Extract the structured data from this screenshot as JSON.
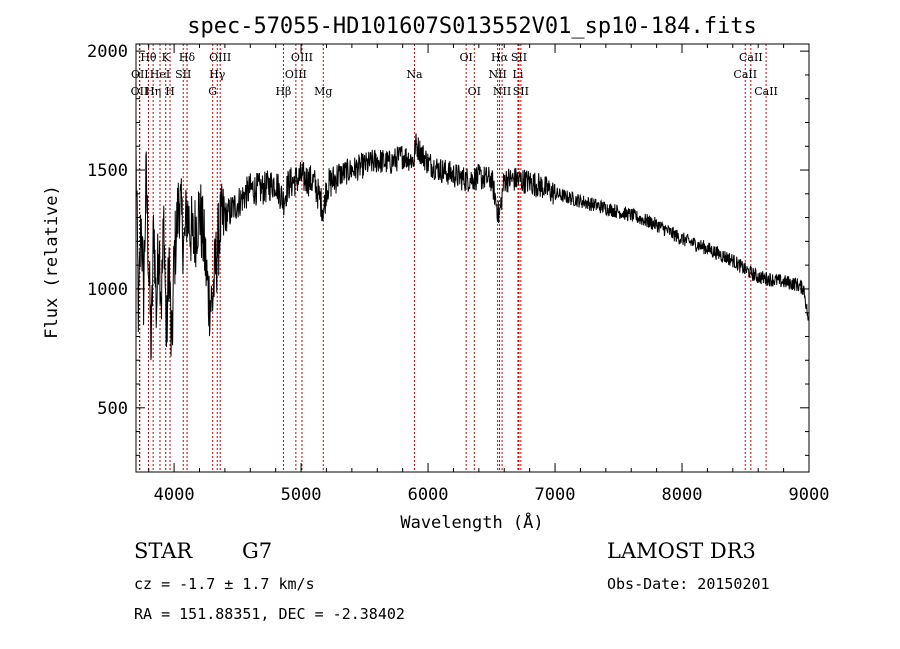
{
  "chart_data": {
    "type": "line",
    "title": "spec-57055-HD101607S013552V01_sp10-184.fits",
    "xlabel": "Wavelength (Å)",
    "ylabel": "Flux (relative)",
    "xlim": [
      3700,
      9000
    ],
    "ylim": [
      230,
      2030
    ],
    "xticks": [
      4000,
      5000,
      6000,
      7000,
      8000,
      9000
    ],
    "yticks": [
      500,
      1000,
      1500,
      2000
    ],
    "series": [
      {
        "name": "spectrum",
        "anchors": [
          [
            3700,
            1560
          ],
          [
            3720,
            860
          ],
          [
            3740,
            1300
          ],
          [
            3760,
            980
          ],
          [
            3780,
            1470
          ],
          [
            3800,
            1100
          ],
          [
            3820,
            740
          ],
          [
            3840,
            1300
          ],
          [
            3860,
            900
          ],
          [
            3880,
            1230
          ],
          [
            3900,
            950
          ],
          [
            3920,
            1300
          ],
          [
            3940,
            760
          ],
          [
            3960,
            1150
          ],
          [
            3980,
            700
          ],
          [
            4000,
            1120
          ],
          [
            4040,
            1390
          ],
          [
            4080,
            1170
          ],
          [
            4100,
            1330
          ],
          [
            4150,
            1200
          ],
          [
            4200,
            1340
          ],
          [
            4240,
            1160
          ],
          [
            4270,
            970
          ],
          [
            4300,
            940
          ],
          [
            4320,
            1060
          ],
          [
            4360,
            1260
          ],
          [
            4400,
            1300
          ],
          [
            4500,
            1360
          ],
          [
            4600,
            1420
          ],
          [
            4700,
            1420
          ],
          [
            4800,
            1450
          ],
          [
            4860,
            1370
          ],
          [
            4900,
            1440
          ],
          [
            5000,
            1470
          ],
          [
            5100,
            1450
          ],
          [
            5180,
            1330
          ],
          [
            5200,
            1430
          ],
          [
            5300,
            1480
          ],
          [
            5400,
            1500
          ],
          [
            5500,
            1520
          ],
          [
            5600,
            1540
          ],
          [
            5700,
            1530
          ],
          [
            5800,
            1560
          ],
          [
            5890,
            1540
          ],
          [
            5900,
            1610
          ],
          [
            6000,
            1530
          ],
          [
            6100,
            1500
          ],
          [
            6200,
            1480
          ],
          [
            6300,
            1460
          ],
          [
            6400,
            1470
          ],
          [
            6500,
            1460
          ],
          [
            6560,
            1300
          ],
          [
            6600,
            1460
          ],
          [
            6700,
            1460
          ],
          [
            6800,
            1450
          ],
          [
            6900,
            1430
          ],
          [
            7000,
            1400
          ],
          [
            7200,
            1370
          ],
          [
            7400,
            1340
          ],
          [
            7600,
            1310
          ],
          [
            7800,
            1270
          ],
          [
            8000,
            1210
          ],
          [
            8200,
            1170
          ],
          [
            8400,
            1120
          ],
          [
            8500,
            1080
          ],
          [
            8600,
            1050
          ],
          [
            8700,
            1040
          ],
          [
            8800,
            1030
          ],
          [
            8900,
            1020
          ],
          [
            8960,
            1000
          ],
          [
            9000,
            850
          ]
        ]
      }
    ],
    "lines": [
      {
        "name": "OII",
        "x": 3727,
        "row": 2
      },
      {
        "name": "Hθ",
        "x": 3798,
        "row": 0
      },
      {
        "name": "OII",
        "x": 3730,
        "row": 1
      },
      {
        "name": "Hη",
        "x": 3835,
        "row": 2
      },
      {
        "name": "HeI",
        "x": 3889,
        "row": 1
      },
      {
        "name": "K",
        "x": 3934,
        "row": 0
      },
      {
        "name": "H",
        "x": 3968,
        "row": 2
      },
      {
        "name": "SII",
        "x": 4072,
        "row": 1
      },
      {
        "name": "Hδ",
        "x": 4102,
        "row": 0
      },
      {
        "name": "G",
        "x": 4304,
        "row": 2
      },
      {
        "name": "Hγ",
        "x": 4340,
        "row": 1
      },
      {
        "name": "OIII",
        "x": 4363,
        "row": 0
      },
      {
        "name": "Hβ",
        "x": 4861,
        "row": 2
      },
      {
        "name": "OIII",
        "x": 4959,
        "row": 1
      },
      {
        "name": "OIII",
        "x": 5007,
        "row": 0
      },
      {
        "name": "Mg",
        "x": 5175,
        "row": 2
      },
      {
        "name": "Na",
        "x": 5893,
        "row": 1
      },
      {
        "name": "OI",
        "x": 6300,
        "row": 0
      },
      {
        "name": "OI",
        "x": 6364,
        "row": 2
      },
      {
        "name": "NII",
        "x": 6548,
        "row": 1
      },
      {
        "name": "Hα",
        "x": 6563,
        "row": 0
      },
      {
        "name": "NII",
        "x": 6583,
        "row": 2
      },
      {
        "name": "Li",
        "x": 6708,
        "row": 1
      },
      {
        "name": "SII",
        "x": 6716,
        "row": 0
      },
      {
        "name": "SII",
        "x": 6731,
        "row": 2
      },
      {
        "name": "CaII",
        "x": 8498,
        "row": 1
      },
      {
        "name": "CaII",
        "x": 8542,
        "row": 0
      },
      {
        "name": "CaII",
        "x": 8662,
        "row": 2
      }
    ],
    "colors": {
      "spectrum": "#000000",
      "lines": "#cc0000"
    }
  },
  "info": {
    "object_class": "STAR",
    "subclass": "G7",
    "redshift": "cz = -1.7 ± 1.7 km/s",
    "coords": "RA = 151.88351, DEC =  -2.38402",
    "survey": "LAMOST DR3",
    "obs_date": "Obs-Date: 20150201"
  }
}
